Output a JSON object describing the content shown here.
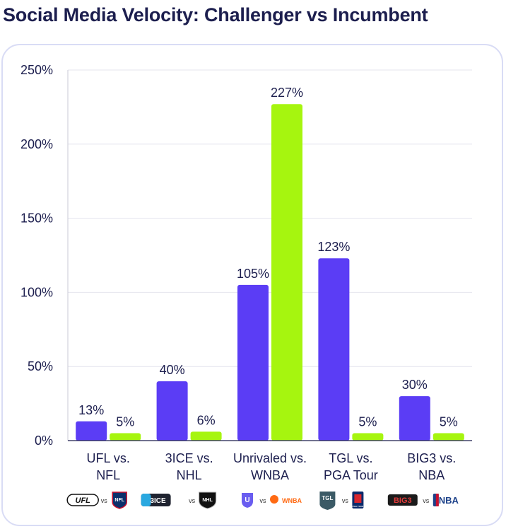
{
  "title": "Social Media Velocity: Challenger vs Incumbent",
  "colors": {
    "challenger": "#5b3df5",
    "incumbent": "#a6f50f",
    "text": "#1c1e4e",
    "grid": "#e4e4ee"
  },
  "chart_data": {
    "type": "bar",
    "title": "Social Media Velocity: Challenger vs Incumbent",
    "categories": [
      {
        "line1": "UFL vs.",
        "line2": "NFL",
        "logos": {
          "left": "UFL",
          "vs": "vs",
          "right": "NFL"
        }
      },
      {
        "line1": "3ICE vs.",
        "line2": "NHL",
        "logos": {
          "left": "3ICE",
          "vs": "vs",
          "right": "NHL"
        }
      },
      {
        "line1": "Unrivaled vs.",
        "line2": "WNBA",
        "logos": {
          "left": "U",
          "vs": "vs",
          "right": "WNBA"
        }
      },
      {
        "line1": "TGL vs.",
        "line2": "PGA Tour",
        "logos": {
          "left": "TGL",
          "vs": "vs",
          "right": "PGA TOUR"
        }
      },
      {
        "line1": "BIG3 vs.",
        "line2": "NBA",
        "logos": {
          "left": "BIG3",
          "vs": "vs",
          "right": "NBA"
        }
      }
    ],
    "series": [
      {
        "values": [
          13,
          40,
          105,
          123,
          30
        ],
        "labels": [
          "13%",
          "40%",
          "105%",
          "123%",
          "30%"
        ]
      },
      {
        "values": [
          5,
          6,
          227,
          5,
          5
        ],
        "labels": [
          "5%",
          "6%",
          "227%",
          "5%",
          "5%"
        ]
      }
    ],
    "ylim": [
      0,
      250
    ],
    "yticks": [
      "0%",
      "50%",
      "100%",
      "150%",
      "200%",
      "250%"
    ],
    "grid": true
  }
}
